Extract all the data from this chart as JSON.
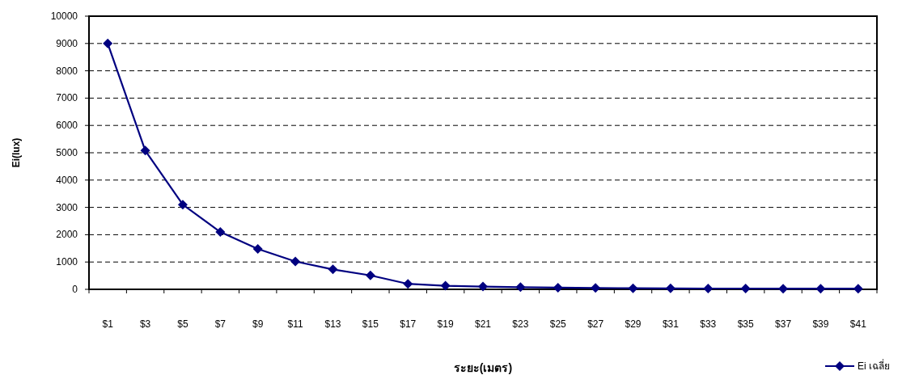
{
  "chart_data": {
    "type": "line",
    "xlabel": "ระยะ(เมตร)",
    "ylabel": "Ei(lux)",
    "categories": [
      "$1",
      "$3",
      "$5",
      "$7",
      "$9",
      "$11",
      "$13",
      "$15",
      "$17",
      "$19",
      "$21",
      "$23",
      "$25",
      "$27",
      "$29",
      "$31",
      "$33",
      "$35",
      "$37",
      "$39",
      "$41"
    ],
    "series": [
      {
        "name": "Ei เฉลี่ย",
        "color": "#000080",
        "values": [
          9000,
          5080,
          3100,
          2100,
          1480,
          1020,
          730,
          510,
          200,
          130,
          100,
          80,
          60,
          50,
          40,
          35,
          30,
          30,
          25,
          25,
          25
        ]
      }
    ],
    "ylim": [
      0,
      10000
    ],
    "yticks": [
      0,
      1000,
      2000,
      3000,
      4000,
      5000,
      6000,
      7000,
      8000,
      9000,
      10000
    ],
    "grid": "y",
    "legend": "bottom right",
    "marker": "diamond",
    "line_style": "solid"
  }
}
